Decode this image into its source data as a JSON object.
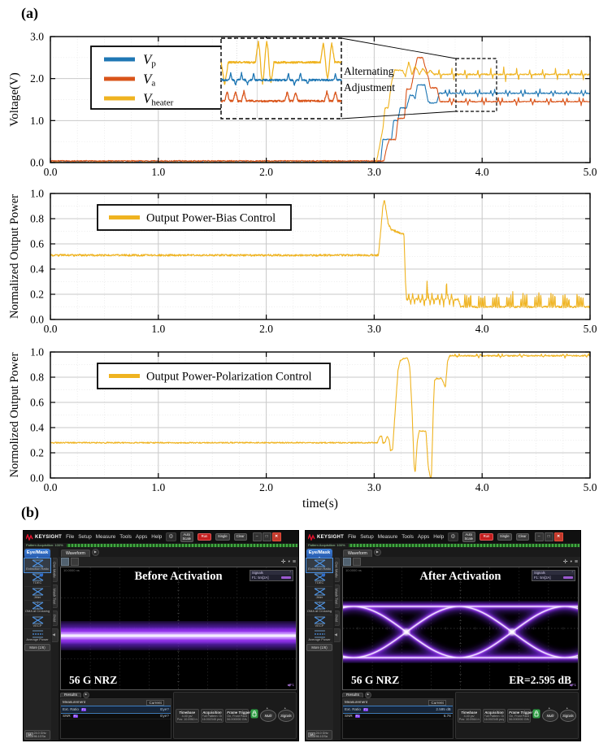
{
  "panels": {
    "a_label": "(a)",
    "b_label": "(b)"
  },
  "chart_data": [
    {
      "type": "line",
      "ylabel": "Voltage(V)",
      "xlabel": "",
      "xlim": [
        0,
        5
      ],
      "ylim": [
        0,
        3
      ],
      "xticks": [
        "0.0",
        "1.0",
        "2.0",
        "3.0",
        "4.0",
        "5.0"
      ],
      "yticks": [
        "0.0",
        "1.0",
        "2.0",
        "3.0"
      ],
      "grid": true,
      "legend_position": "upper-left",
      "legend": [
        {
          "main": "V",
          "sub": "p"
        },
        {
          "main": "V",
          "sub": "a"
        },
        {
          "main": "V",
          "sub": "heater"
        }
      ],
      "annotation": {
        "line1": "Alternating",
        "line2": "Adjustment"
      },
      "series": [
        {
          "name": "Vp",
          "color": "#1f77b4",
          "noise": 0.012,
          "points": [
            [
              0,
              0.015
            ],
            [
              3.06,
              0.015
            ],
            [
              3.07,
              0.3
            ],
            [
              3.08,
              0.55
            ],
            [
              3.16,
              0.55
            ],
            [
              3.18,
              1.0
            ],
            [
              3.22,
              1.0
            ],
            [
              3.24,
              1.3
            ],
            [
              3.3,
              1.3
            ],
            [
              3.33,
              1.6
            ],
            [
              3.36,
              1.6
            ],
            [
              3.38,
              1.52
            ],
            [
              3.4,
              1.85
            ],
            [
              3.47,
              1.85
            ],
            [
              3.5,
              1.45
            ],
            [
              3.52,
              1.42
            ],
            [
              3.58,
              1.42
            ],
            [
              3.6,
              1.65
            ],
            [
              5,
              1.65
            ]
          ],
          "bursts": [
            {
              "start": 3.66,
              "end": 5,
              "period": 0.14,
              "amp": 0.08,
              "mode": "both",
              "n": 3
            }
          ]
        },
        {
          "name": "Va",
          "color": "#d9541a",
          "noise": 0.012,
          "points": [
            [
              0,
              0.04
            ],
            [
              3.09,
              0.04
            ],
            [
              3.12,
              0.4
            ],
            [
              3.14,
              0.55
            ],
            [
              3.2,
              0.55
            ],
            [
              3.22,
              1.05
            ],
            [
              3.28,
              1.05
            ],
            [
              3.3,
              1.75
            ],
            [
              3.34,
              1.75
            ],
            [
              3.37,
              2.15
            ],
            [
              3.4,
              2.5
            ],
            [
              3.45,
              2.5
            ],
            [
              3.47,
              2.3
            ],
            [
              3.5,
              2.05
            ],
            [
              3.52,
              1.78
            ],
            [
              3.58,
              1.78
            ],
            [
              3.61,
              1.45
            ],
            [
              5,
              1.45
            ]
          ],
          "bursts": [
            {
              "start": 3.7,
              "end": 5,
              "period": 0.15,
              "amp": 0.09,
              "mode": "both",
              "n": 3
            }
          ]
        },
        {
          "name": "Vheater",
          "color": "#efb320",
          "noise": 0.016,
          "points": [
            [
              0,
              0.0
            ],
            [
              3.02,
              0.0
            ],
            [
              3.05,
              0.4
            ],
            [
              3.08,
              0.8
            ],
            [
              3.1,
              1.3
            ],
            [
              3.13,
              1.3
            ],
            [
              3.16,
              1.9
            ],
            [
              3.19,
              2.2
            ],
            [
              3.26,
              2.2
            ],
            [
              3.29,
              2.05
            ],
            [
              3.32,
              2.4
            ],
            [
              3.35,
              2.1
            ],
            [
              3.38,
              2.3
            ],
            [
              3.42,
              2.1
            ],
            [
              3.45,
              2.25
            ],
            [
              3.49,
              2.1
            ],
            [
              3.52,
              2.2
            ],
            [
              3.55,
              2.1
            ],
            [
              5,
              2.1
            ]
          ],
          "bursts": [
            {
              "start": 3.6,
              "end": 5,
              "period": 0.12,
              "amp": 0.14,
              "mode": "both",
              "n": 2
            }
          ]
        }
      ]
    },
    {
      "type": "line",
      "ylabel": "Normalized Output Power",
      "xlabel": "",
      "xlim": [
        0,
        5
      ],
      "ylim": [
        0,
        1
      ],
      "xticks": [
        "0.0",
        "1.0",
        "2.0",
        "3.0",
        "4.0",
        "5.0"
      ],
      "yticks": [
        "0.0",
        "0.2",
        "0.4",
        "0.6",
        "0.8",
        "1.0"
      ],
      "grid": true,
      "legend_position": "upper-left",
      "legend_label": "Output Power-Bias Control",
      "series": [
        {
          "name": "Output Power-Bias Control",
          "color": "#efb320",
          "noise": 0.008,
          "points": [
            [
              0,
              0.51
            ],
            [
              3.04,
              0.51
            ],
            [
              3.06,
              0.7
            ],
            [
              3.08,
              0.9
            ],
            [
              3.095,
              0.95
            ],
            [
              3.11,
              0.87
            ],
            [
              3.13,
              0.76
            ],
            [
              3.16,
              0.71
            ],
            [
              3.2,
              0.7
            ],
            [
              3.26,
              0.68
            ],
            [
              3.275,
              0.68
            ],
            [
              3.29,
              0.3
            ],
            [
              3.3,
              0.16
            ],
            [
              3.78,
              0.16
            ],
            [
              3.8,
              0.1
            ],
            [
              5,
              0.1
            ]
          ],
          "bursts": [
            {
              "start": 3.32,
              "end": 3.76,
              "period": 0.09,
              "amp": 0.05,
              "mode": "both",
              "n": 4
            },
            {
              "start": 3.49,
              "end": 3.51,
              "period": 0.1,
              "amp": 0.14,
              "mode": "up",
              "n": 1
            },
            {
              "start": 3.67,
              "end": 3.69,
              "period": 0.1,
              "amp": 0.14,
              "mode": "up",
              "n": 1
            },
            {
              "start": 3.84,
              "end": 5,
              "period": 0.13,
              "amp": 0.1,
              "mode": "up",
              "n": 4
            }
          ]
        }
      ]
    },
    {
      "type": "line",
      "ylabel": "Normolized Output Power",
      "xlabel": "time(s)",
      "xlim": [
        0,
        5
      ],
      "ylim": [
        0,
        1
      ],
      "xticks": [
        "0.0",
        "1.0",
        "2.0",
        "3.0",
        "4.0",
        "5.0"
      ],
      "yticks": [
        "0.0",
        "0.2",
        "0.4",
        "0.6",
        "0.8",
        "1.0"
      ],
      "grid": true,
      "legend_position": "upper-left",
      "legend_label": "Output Power-Polarization Control",
      "series": [
        {
          "name": "Output Power-Polarization Control",
          "color": "#efb320",
          "noise": 0.005,
          "points": [
            [
              0,
              0.28
            ],
            [
              3.03,
              0.28
            ],
            [
              3.05,
              0.33
            ],
            [
              3.07,
              0.33
            ],
            [
              3.08,
              0.28
            ],
            [
              3.1,
              0.28
            ],
            [
              3.12,
              0.33
            ],
            [
              3.14,
              0.3
            ],
            [
              3.15,
              0.22
            ],
            [
              3.17,
              0.22
            ],
            [
              3.18,
              0.35
            ],
            [
              3.2,
              0.6
            ],
            [
              3.22,
              0.85
            ],
            [
              3.24,
              0.93
            ],
            [
              3.27,
              0.95
            ],
            [
              3.31,
              0.95
            ],
            [
              3.33,
              0.88
            ],
            [
              3.35,
              0.55
            ],
            [
              3.37,
              0.1
            ],
            [
              3.38,
              0.04
            ],
            [
              3.4,
              0.3
            ],
            [
              3.42,
              0.38
            ],
            [
              3.44,
              0.37
            ],
            [
              3.48,
              0.37
            ],
            [
              3.5,
              0.1
            ],
            [
              3.52,
              0.0
            ],
            [
              3.53,
              0.0
            ],
            [
              3.55,
              0.6
            ],
            [
              3.56,
              0.78
            ],
            [
              3.58,
              0.79
            ],
            [
              3.62,
              0.79
            ],
            [
              3.64,
              0.76
            ],
            [
              3.66,
              0.72
            ],
            [
              3.68,
              0.93
            ],
            [
              3.7,
              0.97
            ],
            [
              5,
              0.97
            ]
          ],
          "bursts": [
            {
              "start": 3.75,
              "end": 5,
              "period": 0.2,
              "amp": 0.015,
              "mode": "both",
              "n": 3
            }
          ]
        }
      ]
    }
  ],
  "scopes": [
    {
      "logo": "KEYSIGHT",
      "menus": [
        "File",
        "Setup",
        "Measure",
        "Tools",
        "Apps",
        "Help"
      ],
      "buttons": {
        "autoscale": "Auto\nScale",
        "run": "Run",
        "single": "Single",
        "clear": "Clear"
      },
      "acq_bar": "Pattern Acquisition: 100%",
      "mode": "Eye/Mask",
      "vtabs": [
        "Osc Mode",
        "Mask Test",
        "PAM"
      ],
      "sidebar": [
        "Extinction Ratio",
        "TDEC",
        "Jitter",
        "OMA at Crossing",
        "VECP",
        "Average Power"
      ],
      "more": "More (1/6)",
      "module_badge": "1A",
      "module": "24.0 GHz 86.1GSa",
      "wave_tab": "Waveform",
      "display": {
        "title": "Before Activation",
        "nrz": "56 G NRZ",
        "er": "",
        "corner": "10.0000 ns",
        "legend_title": "Signals",
        "legend_item": "F1: 5m[2A]",
        "marker": "F1"
      },
      "results": {
        "tab": "Results",
        "col1": "Measurement",
        "col2": "Current",
        "rows": [
          {
            "name": "Ext. Ratio",
            "badge": "F1",
            "value": "Eye?"
          },
          {
            "name": "SNR",
            "badge": "F1",
            "value": "Eye?"
          }
        ]
      },
      "status": {
        "tb_title": "Timebase",
        "tb1": "4.40 ps/",
        "tb2": "Pos: 10.0950 ns",
        "acq_title": "Acquisition",
        "acq1": "Full Pattern: On",
        "acq2": "16.002345 ps/pt",
        "trig_title": "Frame Trigger",
        "trig1": "On, Front Panel",
        "trig2": "56.000000 GHz",
        "multi": "Multi",
        "signals": "Signals"
      },
      "eye": "closed"
    },
    {
      "logo": "KEYSIGHT",
      "menus": [
        "File",
        "Setup",
        "Measure",
        "Tools",
        "Apps",
        "Help"
      ],
      "buttons": {
        "autoscale": "Auto\nScale",
        "run": "Run",
        "single": "Single",
        "clear": "Clear"
      },
      "acq_bar": "Pattern Acquisition: 100%",
      "mode": "Eye/Mask",
      "vtabs": [
        "Osc Mode",
        "Mask Test",
        "PAM"
      ],
      "sidebar": [
        "Extinction Ratio",
        "TDEC",
        "Jitter",
        "OMA at Crossing",
        "VECP",
        "Average Power"
      ],
      "more": "More (1/6)",
      "module_badge": "1A",
      "module": "24.0 GHz 86.1GSa",
      "wave_tab": "Waveform",
      "display": {
        "title": "After Activation",
        "nrz": "56 G NRZ",
        "er": "ER=2.595 dB",
        "corner": "10.0000 ns",
        "legend_title": "Signals",
        "legend_item": "F1: 5m[2A]",
        "marker": "F1"
      },
      "results": {
        "tab": "Results",
        "col1": "Measurement",
        "col2": "Current",
        "rows": [
          {
            "name": "Ext. Ratio",
            "badge": "F1",
            "value": "2.595 dB"
          },
          {
            "name": "SNR",
            "badge": "F1",
            "value": "6.76"
          }
        ]
      },
      "status": {
        "tb_title": "Timebase",
        "tb1": "4.40 ps/",
        "tb2": "Pos: 10.0944 ns",
        "acq_title": "Acquisition",
        "acq1": "Full Pattern: On",
        "acq2": "16.002345 ps/pt",
        "trig_title": "Frame Trigger",
        "trig1": "On, Front Panel",
        "trig2": "56.000000 GHz",
        "multi": "Multi",
        "signals": "Signals"
      },
      "eye": "open"
    }
  ]
}
